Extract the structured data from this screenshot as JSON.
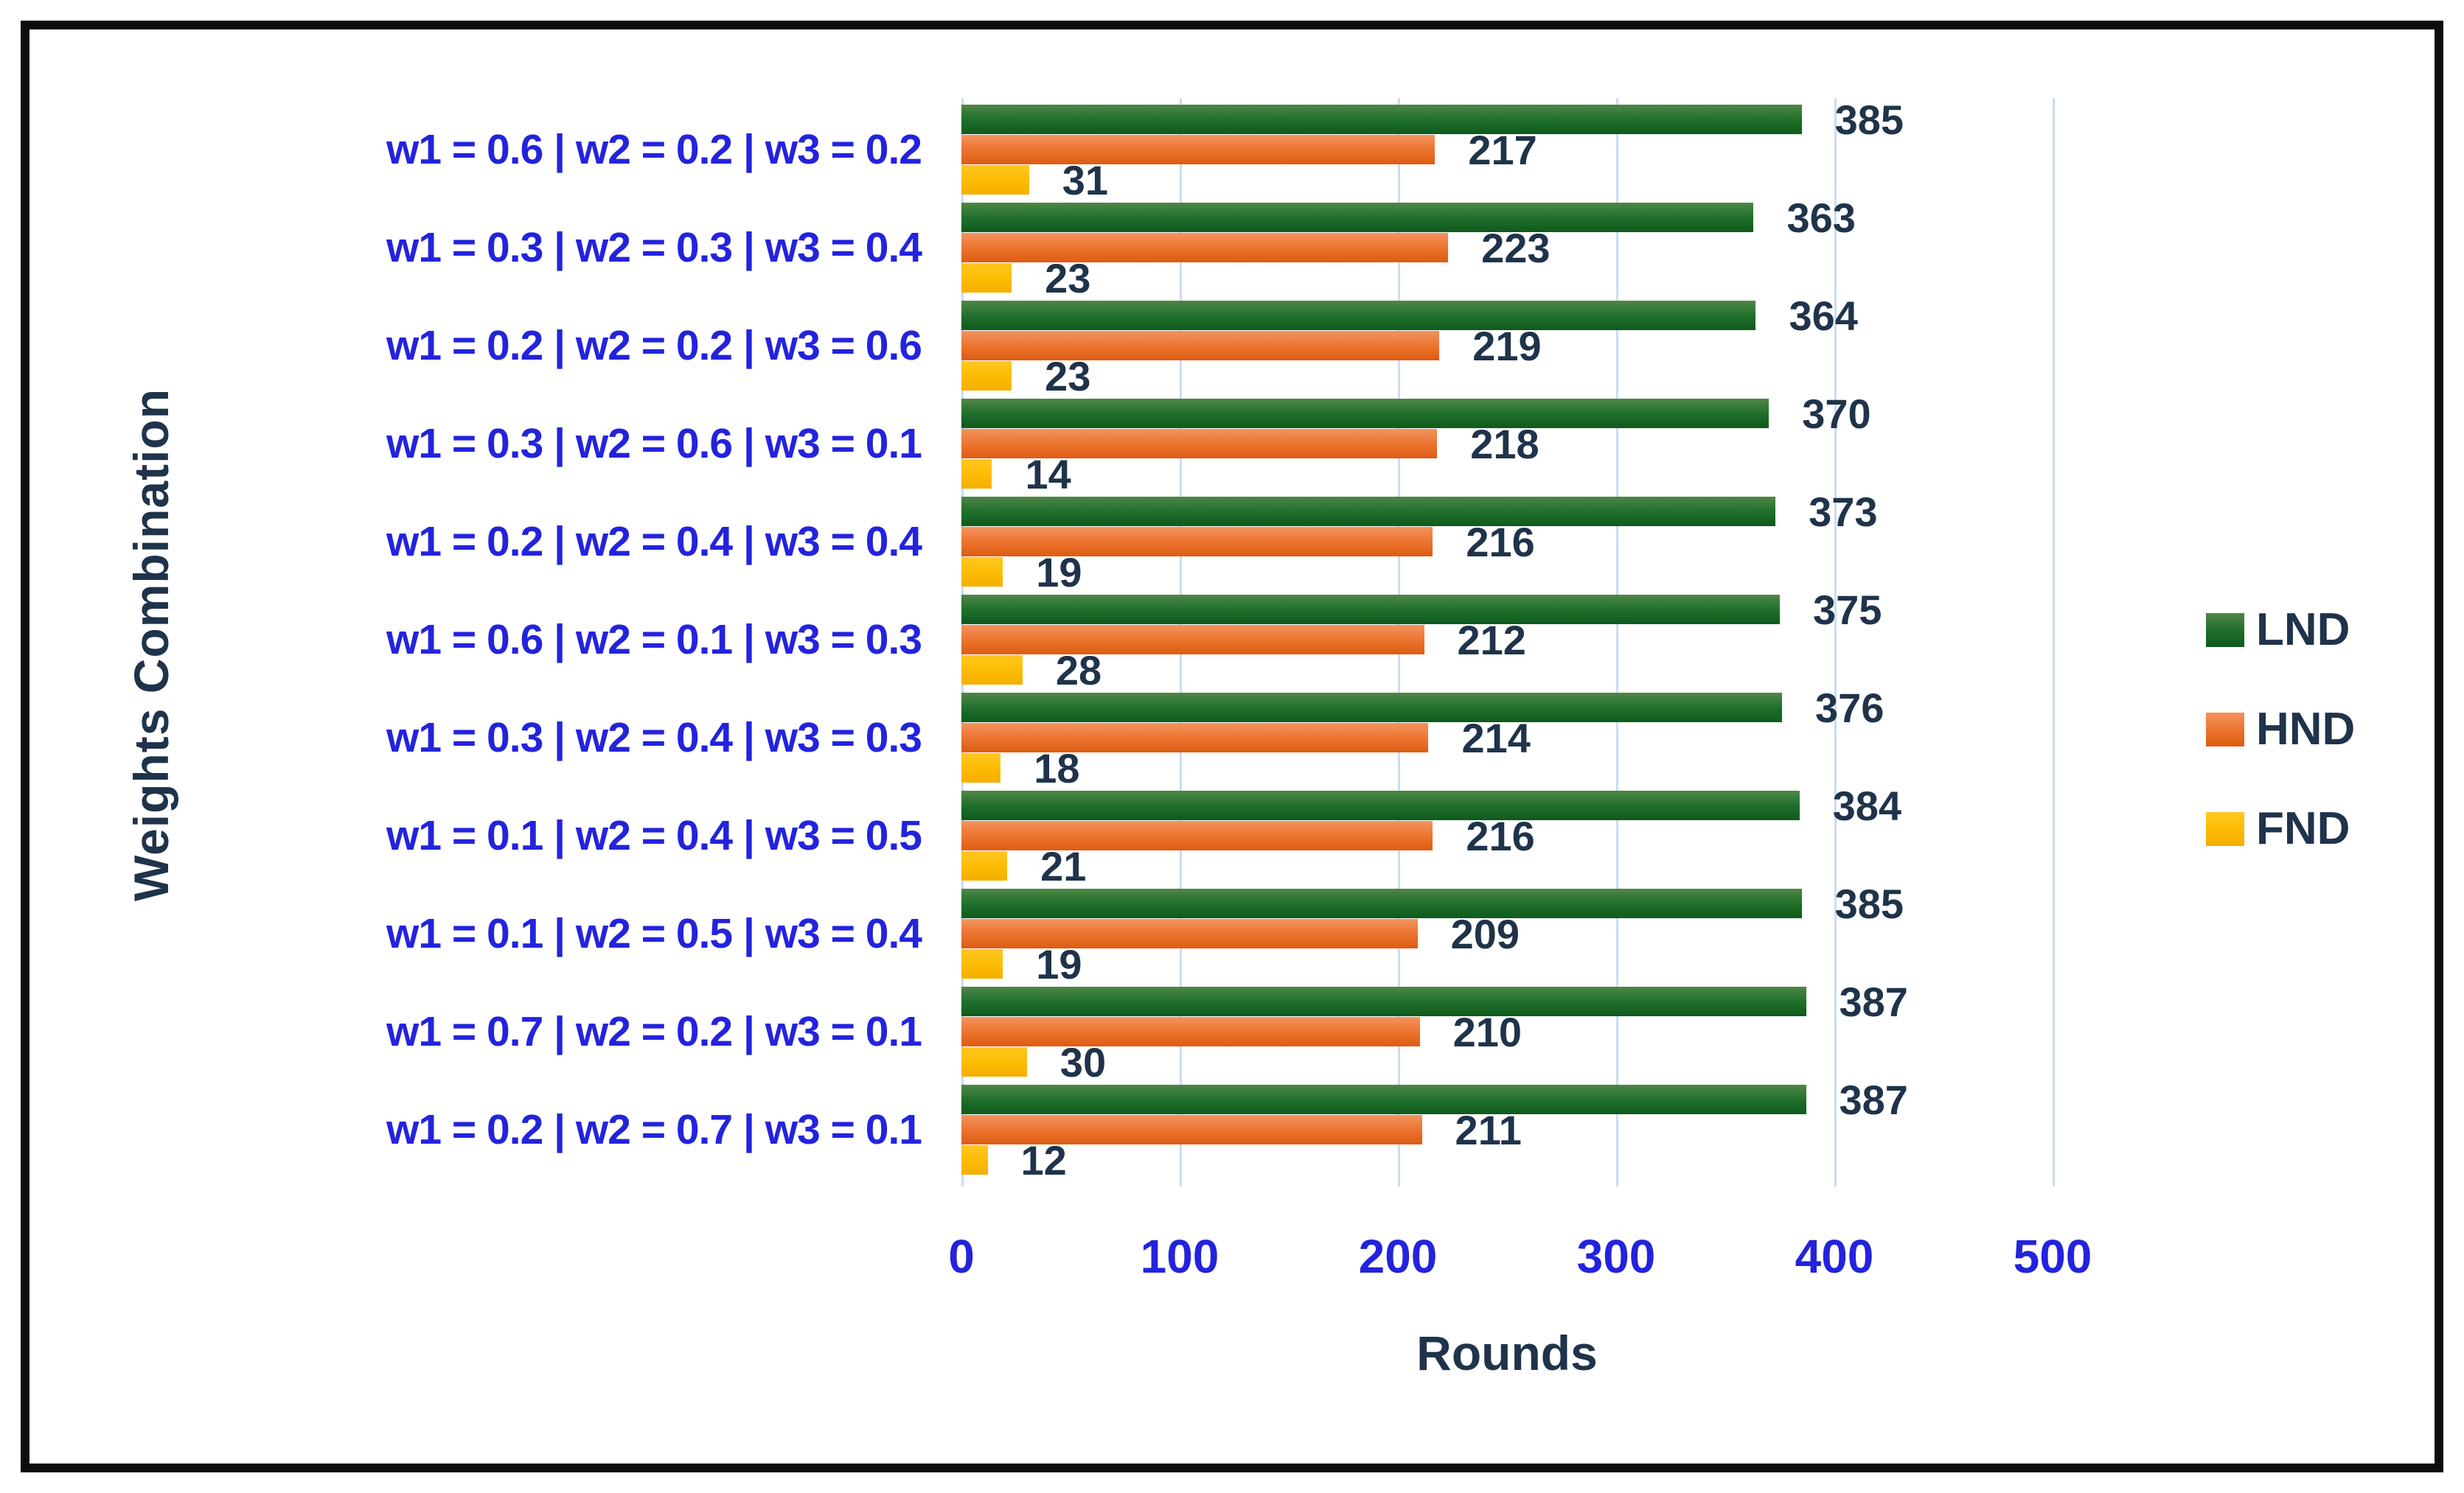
{
  "chart_data": {
    "type": "bar",
    "orientation": "horizontal",
    "title": "",
    "xlabel": "Rounds",
    "ylabel": "Weights Combination",
    "categories": [
      "w1 = 0.6 | w2 = 0.2 | w3 = 0.2",
      "w1 = 0.3 | w2 = 0.3 | w3 = 0.4",
      "w1 = 0.2 | w2 = 0.2 | w3 = 0.6",
      "w1 = 0.3 | w2 = 0.6 | w3 = 0.1",
      "w1 = 0.2 | w2 = 0.4 | w3 = 0.4",
      "w1 = 0.6 | w2 = 0.1 | w3 = 0.3",
      "w1 = 0.3 | w2 = 0.4 | w3 = 0.3",
      "w1 = 0.1 | w2 = 0.4 | w3 = 0.5",
      "w1 = 0.1 | w2 = 0.5 | w3 = 0.4",
      "w1 = 0.7 | w2 = 0.2 | w3 = 0.1",
      "w1 = 0.2 | w2 = 0.7 | w3 = 0.1"
    ],
    "series": [
      {
        "name": "LND",
        "color": "#20702c",
        "gradient": [
          "#4f8747",
          "#20702c",
          "#0f5a1d"
        ],
        "values": [
          385,
          363,
          364,
          370,
          373,
          375,
          376,
          384,
          385,
          387,
          387
        ]
      },
      {
        "name": "HND",
        "color": "#ec752f",
        "gradient": [
          "#f4935f",
          "#ec752f",
          "#dd5c12"
        ],
        "values": [
          217,
          223,
          219,
          218,
          216,
          212,
          214,
          216,
          209,
          210,
          211
        ]
      },
      {
        "name": "FND",
        "color": "#fdbc05",
        "gradient": [
          "#ffc822",
          "#fdbc05",
          "#f5ae00"
        ],
        "values": [
          31,
          23,
          23,
          14,
          19,
          28,
          18,
          21,
          19,
          30,
          12
        ]
      }
    ],
    "x_ticks": [
      "0",
      "100",
      "200",
      "300",
      "400",
      "500"
    ],
    "xlim": [
      0,
      500
    ],
    "grid": true,
    "legend_position": "right",
    "colors": {
      "background": "#ffffff",
      "border": "#0c0c0c",
      "gridline": "#c9ddf2",
      "axis_tick_text": "#2323dd",
      "category_text": "#2323dd",
      "value_label_text": "#1f334a",
      "axis_title_text": "#1f334a",
      "legend_text": "#1f334a"
    }
  }
}
